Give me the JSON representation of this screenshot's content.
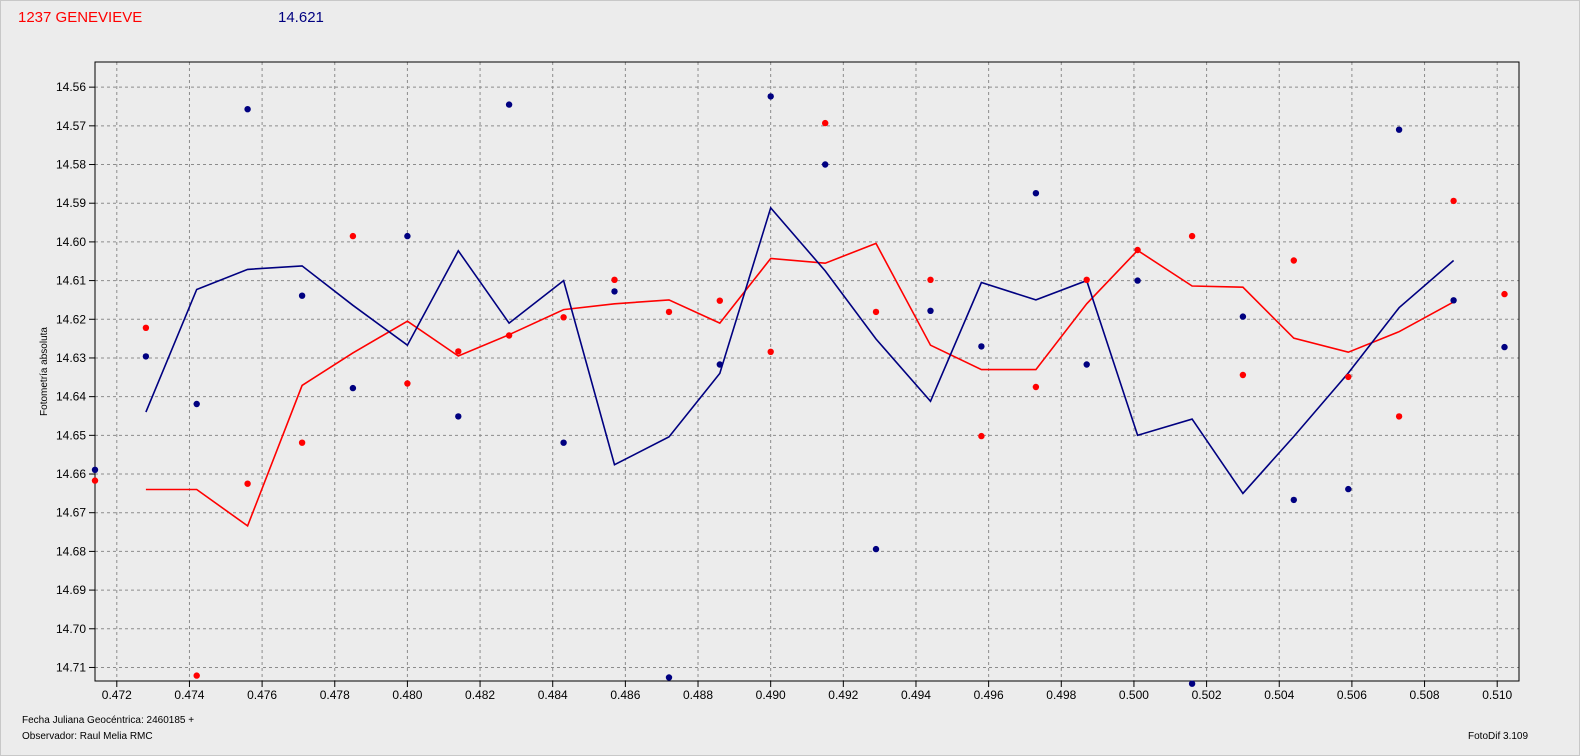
{
  "header": {
    "target_name": "1237 GENEVIEVE",
    "mean_mag": "14.621"
  },
  "footer": {
    "julian_label": "Fecha Juliana Geocéntrica: 2460185 +",
    "observer_label": "Observador: Raul Melia RMC",
    "software": "FotoDif 3.109"
  },
  "colors": {
    "series_red": "#ff0000",
    "series_blue": "#000080",
    "plot_bg": "#ececec",
    "grid": "#8c8c8c"
  },
  "chart_data": {
    "type": "scatter",
    "ylabel": "Fotometría absoluta",
    "xlabel": "",
    "x_tick_labels": [
      "0.472",
      "0.474",
      "0.476",
      "0.478",
      "0.480",
      "0.482",
      "0.484",
      "0.486",
      "0.488",
      "0.490",
      "0.492",
      "0.494",
      "0.496",
      "0.498",
      "0.500",
      "0.502",
      "0.504",
      "0.506",
      "0.508",
      "0.510"
    ],
    "y_tick_labels": [
      "14.56",
      "14.57",
      "14.58",
      "14.59",
      "14.60",
      "14.61",
      "14.62",
      "14.63",
      "14.64",
      "14.65",
      "14.66",
      "14.67",
      "14.68",
      "14.69",
      "14.70",
      "14.71"
    ],
    "xlim": [
      0.4714,
      0.5106
    ],
    "ylim": [
      14.5535,
      14.7135
    ],
    "y_inverted": true,
    "grid": true,
    "series": [
      {
        "color": "#ff0000",
        "points": [
          [
            0.4714,
            14.6617
          ],
          [
            0.4728,
            14.6222
          ],
          [
            0.4742,
            14.7121
          ],
          [
            0.4756,
            14.6625
          ],
          [
            0.4771,
            14.6519
          ],
          [
            0.4785,
            14.5985
          ],
          [
            0.48,
            14.6366
          ],
          [
            0.4814,
            14.6283
          ],
          [
            0.4828,
            14.6242
          ],
          [
            0.4843,
            14.6195
          ],
          [
            0.4857,
            14.6098
          ],
          [
            0.4872,
            14.6181
          ],
          [
            0.4886,
            14.6152
          ],
          [
            0.49,
            14.6284
          ],
          [
            0.4915,
            14.5693
          ],
          [
            0.4929,
            14.6181
          ],
          [
            0.4944,
            14.6098
          ],
          [
            0.4958,
            14.6502
          ],
          [
            0.4973,
            14.6375
          ],
          [
            0.4987,
            14.6098
          ],
          [
            0.5001,
            14.6021
          ],
          [
            0.5016,
            14.5985
          ],
          [
            0.503,
            14.6344
          ],
          [
            0.5044,
            14.6048
          ],
          [
            0.5059,
            14.6349
          ],
          [
            0.5073,
            14.6451
          ],
          [
            0.5088,
            14.5894
          ],
          [
            0.5102,
            14.6135
          ]
        ],
        "line": [
          [
            0.4728,
            14.664
          ],
          [
            0.4742,
            14.664
          ],
          [
            0.4756,
            14.6734
          ],
          [
            0.4771,
            14.6371
          ],
          [
            0.4785,
            14.6287
          ],
          [
            0.48,
            14.6205
          ],
          [
            0.4814,
            14.6295
          ],
          [
            0.4828,
            14.624
          ],
          [
            0.4843,
            14.6175
          ],
          [
            0.4857,
            14.616
          ],
          [
            0.4872,
            14.615
          ],
          [
            0.4886,
            14.621
          ],
          [
            0.49,
            14.6043
          ],
          [
            0.4915,
            14.6055
          ],
          [
            0.4929,
            14.6004
          ],
          [
            0.4944,
            14.6267
          ],
          [
            0.4958,
            14.633
          ],
          [
            0.4973,
            14.633
          ],
          [
            0.4987,
            14.616
          ],
          [
            0.5001,
            14.6022
          ],
          [
            0.5016,
            14.6114
          ],
          [
            0.503,
            14.6117
          ],
          [
            0.5044,
            14.6249
          ],
          [
            0.5059,
            14.6285
          ],
          [
            0.5073,
            14.6232
          ],
          [
            0.5088,
            14.6155
          ]
        ]
      },
      {
        "color": "#000080",
        "points": [
          [
            0.4714,
            14.6589
          ],
          [
            0.4728,
            14.6296
          ],
          [
            0.4742,
            14.6419
          ],
          [
            0.4756,
            14.5657
          ],
          [
            0.4771,
            14.6139
          ],
          [
            0.4785,
            14.6378
          ],
          [
            0.48,
            14.5985
          ],
          [
            0.4814,
            14.6451
          ],
          [
            0.4828,
            14.5645
          ],
          [
            0.4843,
            14.6519
          ],
          [
            0.4857,
            14.6128
          ],
          [
            0.4872,
            14.7126
          ],
          [
            0.4886,
            14.6317
          ],
          [
            0.49,
            14.5624
          ],
          [
            0.4915,
            14.58
          ],
          [
            0.4929,
            14.6794
          ],
          [
            0.4944,
            14.6178
          ],
          [
            0.4958,
            14.627
          ],
          [
            0.4973,
            14.5874
          ],
          [
            0.4987,
            14.6317
          ],
          [
            0.5001,
            14.61
          ],
          [
            0.5016,
            14.7142
          ],
          [
            0.503,
            14.6193
          ],
          [
            0.5044,
            14.6667
          ],
          [
            0.5059,
            14.6639
          ],
          [
            0.5073,
            14.571
          ],
          [
            0.5088,
            14.6151
          ],
          [
            0.5102,
            14.6272
          ]
        ],
        "line": [
          [
            0.4728,
            14.644
          ],
          [
            0.4742,
            14.6123
          ],
          [
            0.4756,
            14.6071
          ],
          [
            0.4771,
            14.6062
          ],
          [
            0.4785,
            14.6164
          ],
          [
            0.48,
            14.6267
          ],
          [
            0.4814,
            14.6023
          ],
          [
            0.4828,
            14.621
          ],
          [
            0.4843,
            14.61
          ],
          [
            0.4857,
            14.6576
          ],
          [
            0.4872,
            14.6504
          ],
          [
            0.4886,
            14.634
          ],
          [
            0.49,
            14.5912
          ],
          [
            0.4915,
            14.6075
          ],
          [
            0.4929,
            14.6251
          ],
          [
            0.4944,
            14.6412
          ],
          [
            0.4958,
            14.6105
          ],
          [
            0.4973,
            14.615
          ],
          [
            0.4987,
            14.61
          ],
          [
            0.5001,
            14.65
          ],
          [
            0.5016,
            14.6458
          ],
          [
            0.503,
            14.665
          ],
          [
            0.5044,
            14.6503
          ],
          [
            0.5059,
            14.6339
          ],
          [
            0.5073,
            14.617
          ],
          [
            0.5088,
            14.6048
          ]
        ]
      }
    ]
  }
}
